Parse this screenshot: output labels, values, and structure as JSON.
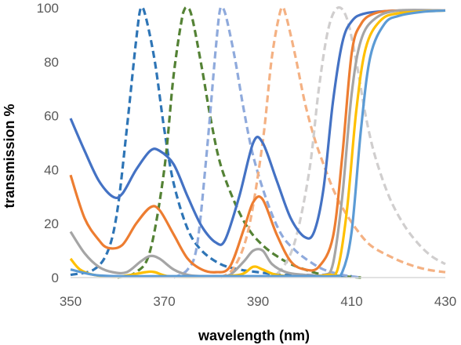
{
  "chart_data": {
    "type": "line",
    "title": "",
    "xlabel": "wavelength (nm)",
    "ylabel": "transmission %",
    "xlim": [
      350,
      430
    ],
    "ylim": [
      0,
      100
    ],
    "x_ticks": [
      350,
      370,
      390,
      410,
      430
    ],
    "y_ticks": [
      0,
      20,
      40,
      60,
      80,
      100
    ],
    "grid": false,
    "legend": "none",
    "series": [
      {
        "color": "#4472C4",
        "dashed": false,
        "points": [
          [
            350,
            59
          ],
          [
            353,
            47
          ],
          [
            356,
            36
          ],
          [
            359,
            30
          ],
          [
            361,
            31
          ],
          [
            364,
            40
          ],
          [
            367,
            47
          ],
          [
            369,
            47
          ],
          [
            372,
            42
          ],
          [
            375,
            30
          ],
          [
            378,
            19
          ],
          [
            381,
            13
          ],
          [
            383,
            14
          ],
          [
            386,
            30
          ],
          [
            389,
            50
          ],
          [
            391,
            50
          ],
          [
            394,
            36
          ],
          [
            397,
            22
          ],
          [
            400,
            15
          ],
          [
            402,
            17
          ],
          [
            404,
            33
          ],
          [
            406,
            65
          ],
          [
            408,
            87
          ],
          [
            410,
            95
          ],
          [
            413,
            98
          ],
          [
            420,
            99
          ],
          [
            430,
            99
          ]
        ]
      },
      {
        "color": "#ED7D31",
        "dashed": false,
        "points": [
          [
            350,
            38
          ],
          [
            353,
            22
          ],
          [
            356,
            14
          ],
          [
            358,
            11
          ],
          [
            361,
            12
          ],
          [
            364,
            20
          ],
          [
            367,
            26
          ],
          [
            369,
            25
          ],
          [
            372,
            16
          ],
          [
            375,
            7
          ],
          [
            378,
            3
          ],
          [
            381,
            2
          ],
          [
            384,
            4
          ],
          [
            387,
            18
          ],
          [
            389,
            28
          ],
          [
            391,
            29
          ],
          [
            394,
            16
          ],
          [
            397,
            6
          ],
          [
            400,
            3
          ],
          [
            403,
            4
          ],
          [
            406,
            15
          ],
          [
            408,
            45
          ],
          [
            410,
            83
          ],
          [
            412,
            94
          ],
          [
            415,
            98
          ],
          [
            420,
            99
          ],
          [
            430,
            99
          ]
        ]
      },
      {
        "color": "#A5A5A5",
        "dashed": false,
        "points": [
          [
            350,
            17
          ],
          [
            353,
            9
          ],
          [
            356,
            4
          ],
          [
            359,
            2
          ],
          [
            362,
            2
          ],
          [
            365,
            6
          ],
          [
            367,
            8
          ],
          [
            369,
            7
          ],
          [
            372,
            3
          ],
          [
            375,
            1
          ],
          [
            378,
            0.5
          ],
          [
            381,
            0.5
          ],
          [
            384,
            1
          ],
          [
            387,
            6
          ],
          [
            389,
            10
          ],
          [
            391,
            10
          ],
          [
            393,
            5
          ],
          [
            396,
            2
          ],
          [
            400,
            1
          ],
          [
            404,
            1
          ],
          [
            406,
            5
          ],
          [
            408,
            30
          ],
          [
            410,
            68
          ],
          [
            412,
            88
          ],
          [
            415,
            96
          ],
          [
            420,
            99
          ],
          [
            430,
            99
          ]
        ]
      },
      {
        "color": "#FFC000",
        "dashed": false,
        "points": [
          [
            350,
            7
          ],
          [
            352,
            3
          ],
          [
            355,
            1
          ],
          [
            360,
            0.3
          ],
          [
            366,
            2
          ],
          [
            368,
            2
          ],
          [
            371,
            0.5
          ],
          [
            378,
            0.3
          ],
          [
            386,
            1
          ],
          [
            389,
            4
          ],
          [
            391,
            3
          ],
          [
            394,
            1
          ],
          [
            400,
            0.3
          ],
          [
            405,
            1
          ],
          [
            407,
            3
          ],
          [
            409,
            25
          ],
          [
            411,
            62
          ],
          [
            413,
            85
          ],
          [
            416,
            95
          ],
          [
            420,
            98
          ],
          [
            430,
            99
          ]
        ]
      },
      {
        "color": "#5B9BD5",
        "dashed": false,
        "points": [
          [
            350,
            3
          ],
          [
            355,
            1
          ],
          [
            360,
            0.5
          ],
          [
            370,
            0.5
          ],
          [
            380,
            0.5
          ],
          [
            390,
            0.5
          ],
          [
            400,
            0.5
          ],
          [
            406,
            0.5
          ],
          [
            408,
            2
          ],
          [
            410,
            17
          ],
          [
            412,
            55
          ],
          [
            414,
            82
          ],
          [
            417,
            94
          ],
          [
            420,
            97
          ],
          [
            425,
            98.5
          ],
          [
            430,
            99
          ]
        ]
      },
      {
        "color": "#2E75B6",
        "dashed": true,
        "points": [
          [
            350,
            1
          ],
          [
            355,
            3
          ],
          [
            358,
            10
          ],
          [
            360,
            25
          ],
          [
            362,
            55
          ],
          [
            364,
            88
          ],
          [
            365,
            100
          ],
          [
            366,
            97
          ],
          [
            368,
            80
          ],
          [
            370,
            55
          ],
          [
            372,
            35
          ],
          [
            375,
            18
          ],
          [
            378,
            10
          ],
          [
            382,
            5
          ],
          [
            386,
            3
          ],
          [
            390,
            2
          ],
          [
            395,
            1
          ],
          [
            400,
            1
          ],
          [
            405,
            0.5
          ],
          [
            410,
            0.5
          ]
        ]
      },
      {
        "color": "#548235",
        "dashed": true,
        "points": [
          [
            360,
            0
          ],
          [
            364,
            2
          ],
          [
            367,
            10
          ],
          [
            370,
            40
          ],
          [
            372,
            75
          ],
          [
            374,
            98
          ],
          [
            375,
            100
          ],
          [
            376,
            96
          ],
          [
            378,
            78
          ],
          [
            380,
            58
          ],
          [
            382,
            42
          ],
          [
            385,
            28
          ],
          [
            388,
            18
          ],
          [
            391,
            12
          ],
          [
            394,
            8
          ],
          [
            397,
            5
          ],
          [
            400,
            3
          ],
          [
            404,
            1
          ],
          [
            408,
            0.5
          ],
          [
            412,
            0
          ]
        ]
      },
      {
        "color": "#8FAADC",
        "dashed": true,
        "points": [
          [
            372,
            0
          ],
          [
            375,
            3
          ],
          [
            377,
            12
          ],
          [
            379,
            45
          ],
          [
            381,
            85
          ],
          [
            382,
            100
          ],
          [
            383,
            98
          ],
          [
            385,
            82
          ],
          [
            387,
            62
          ],
          [
            389,
            45
          ],
          [
            392,
            28
          ],
          [
            395,
            16
          ],
          [
            398,
            10
          ],
          [
            401,
            6
          ],
          [
            404,
            3
          ],
          [
            408,
            1
          ],
          [
            412,
            0
          ]
        ]
      },
      {
        "color": "#F4B183",
        "dashed": true,
        "points": [
          [
            382,
            0
          ],
          [
            385,
            4
          ],
          [
            388,
            18
          ],
          [
            391,
            50
          ],
          [
            393,
            82
          ],
          [
            395,
            100
          ],
          [
            396,
            97
          ],
          [
            398,
            82
          ],
          [
            400,
            65
          ],
          [
            402,
            52
          ],
          [
            404,
            42
          ],
          [
            406,
            33
          ],
          [
            408,
            26
          ],
          [
            411,
            18
          ],
          [
            414,
            12
          ],
          [
            418,
            8
          ],
          [
            422,
            5
          ],
          [
            426,
            3
          ],
          [
            430,
            2
          ]
        ]
      },
      {
        "color": "#D0CECE",
        "dashed": true,
        "points": [
          [
            392,
            0
          ],
          [
            395,
            3
          ],
          [
            398,
            14
          ],
          [
            401,
            40
          ],
          [
            403,
            70
          ],
          [
            405,
            92
          ],
          [
            407,
            100
          ],
          [
            409,
            96
          ],
          [
            411,
            80
          ],
          [
            413,
            60
          ],
          [
            415,
            45
          ],
          [
            418,
            30
          ],
          [
            421,
            20
          ],
          [
            424,
            13
          ],
          [
            427,
            8
          ],
          [
            430,
            5
          ]
        ]
      }
    ]
  }
}
